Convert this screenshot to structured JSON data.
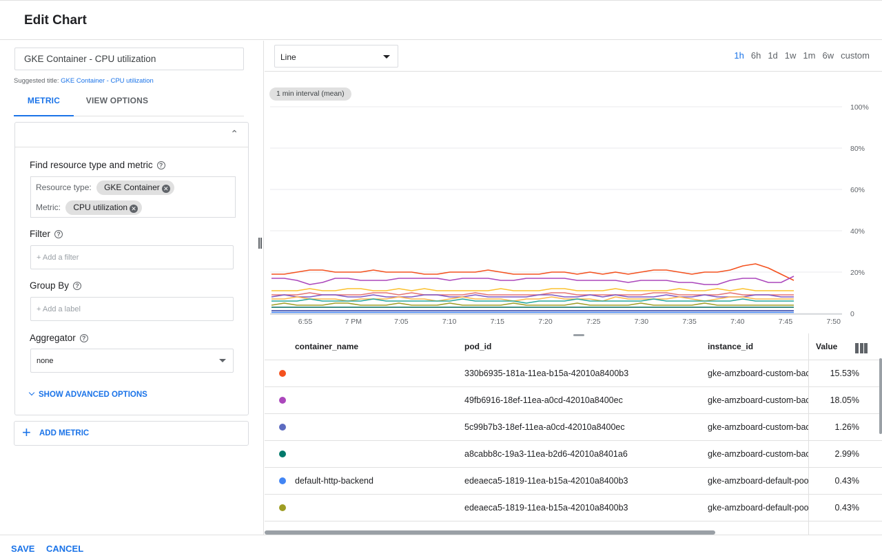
{
  "header": {
    "title": "Edit Chart"
  },
  "editor": {
    "title_value": "GKE Container - CPU utilization",
    "suggested_prefix": "Suggested title:",
    "suggested_link": "GKE Container - CPU utilization",
    "tabs": [
      {
        "label": "METRIC"
      },
      {
        "label": "VIEW OPTIONS"
      }
    ],
    "find_label": "Find resource type and metric",
    "resource_type_label": "Resource type:",
    "resource_type_value": "GKE Container",
    "metric_label": "Metric:",
    "metric_value": "CPU utilization",
    "filter_label": "Filter",
    "filter_placeholder": "+ Add a filter",
    "groupby_label": "Group By",
    "groupby_placeholder": "+ Add a label",
    "aggregator_label": "Aggregator",
    "aggregator_value": "none",
    "advanced_label": "SHOW ADVANCED OPTIONS",
    "add_metric_label": "ADD METRIC"
  },
  "toolbar": {
    "chart_type": "Line",
    "ranges": [
      "1h",
      "6h",
      "1d",
      "1w",
      "1m",
      "6w",
      "custom"
    ],
    "active_range": "1h"
  },
  "chart": {
    "interval_label": "1 min interval (mean)"
  },
  "chart_data": {
    "type": "line",
    "title": "",
    "xlabel": "",
    "ylabel": "",
    "ylim": [
      0,
      100
    ],
    "yticks": [
      "0",
      "20%",
      "40%",
      "60%",
      "80%",
      "100%"
    ],
    "xticks": [
      "6:55",
      "7 PM",
      "7:05",
      "7:10",
      "7:15",
      "7:20",
      "7:25",
      "7:30",
      "7:35",
      "7:40",
      "7:45",
      "7:50"
    ],
    "grid": true,
    "series": [
      {
        "color": "#f4511e",
        "values": [
          19,
          19,
          20,
          21,
          21,
          20,
          20,
          20,
          21,
          20,
          20,
          20,
          19,
          19,
          20,
          20,
          20,
          21,
          20,
          19,
          19,
          19,
          20,
          20,
          19,
          20,
          19,
          20,
          19,
          20,
          21,
          21,
          20,
          19,
          20,
          20,
          21,
          23,
          24,
          22,
          19,
          16
        ]
      },
      {
        "color": "#ab47bc",
        "values": [
          17,
          17,
          16,
          14,
          15,
          17,
          17,
          16,
          16,
          16,
          17,
          17,
          17,
          17,
          16,
          17,
          17,
          17,
          16,
          16,
          17,
          17,
          17,
          17,
          16,
          16,
          16,
          16,
          15,
          16,
          16,
          16,
          15,
          15,
          14,
          14,
          16,
          17,
          17,
          15,
          15,
          18
        ]
      },
      {
        "color": "#fbc02d",
        "values": [
          11,
          11,
          11,
          12,
          11,
          11,
          12,
          12,
          11,
          11,
          12,
          11,
          12,
          11,
          11,
          11,
          11,
          11,
          12,
          11,
          11,
          11,
          12,
          12,
          11,
          11,
          11,
          12,
          11,
          11,
          11,
          11,
          12,
          11,
          11,
          12,
          11,
          12,
          11,
          11,
          11,
          11
        ]
      },
      {
        "color": "#e57373",
        "values": [
          9,
          9,
          9,
          10,
          9,
          9,
          9,
          9,
          10,
          10,
          9,
          10,
          9,
          9,
          9,
          9,
          10,
          9,
          9,
          9,
          9,
          9,
          10,
          10,
          9,
          9,
          9,
          9,
          9,
          9,
          10,
          10,
          9,
          9,
          9,
          9,
          10,
          9,
          9,
          9,
          9,
          9
        ]
      },
      {
        "color": "#7e57c2",
        "values": [
          8,
          9,
          8,
          8,
          9,
          9,
          8,
          8,
          9,
          8,
          8,
          8,
          9,
          9,
          8,
          8,
          9,
          8,
          8,
          8,
          8,
          9,
          9,
          8,
          8,
          9,
          8,
          9,
          8,
          8,
          8,
          9,
          8,
          8,
          9,
          8,
          8,
          8,
          9,
          9,
          8,
          8
        ]
      },
      {
        "color": "#ffb74d",
        "values": [
          7,
          7,
          8,
          7,
          7,
          7,
          6,
          7,
          7,
          7,
          8,
          7,
          7,
          6,
          7,
          8,
          7,
          7,
          7,
          6,
          7,
          7,
          8,
          7,
          7,
          7,
          6,
          8,
          7,
          7,
          7,
          7,
          8,
          7,
          6,
          7,
          8,
          8,
          7,
          7,
          7,
          7
        ]
      },
      {
        "color": "#26a69a",
        "values": [
          6,
          6,
          6,
          7,
          6,
          6,
          6,
          6,
          7,
          6,
          6,
          6,
          6,
          6,
          6,
          7,
          6,
          6,
          6,
          6,
          5,
          6,
          6,
          6,
          7,
          6,
          6,
          6,
          6,
          6,
          7,
          6,
          6,
          6,
          6,
          6,
          6,
          7,
          6,
          6,
          6,
          6
        ]
      },
      {
        "color": "#9e9d24",
        "values": [
          4,
          5,
          4,
          4,
          4,
          5,
          5,
          4,
          4,
          4,
          5,
          4,
          4,
          4,
          5,
          4,
          4,
          4,
          4,
          5,
          4,
          4,
          4,
          4,
          5,
          4,
          4,
          4,
          4,
          5,
          4,
          4,
          4,
          4,
          5,
          4,
          4,
          4,
          4,
          4,
          4,
          4
        ]
      },
      {
        "color": "#00695c",
        "values": [
          3,
          3,
          3,
          3,
          3,
          3,
          3,
          3,
          3,
          3,
          3,
          3,
          3,
          3,
          3,
          3,
          3,
          3,
          3,
          3,
          3,
          3,
          3,
          3,
          3,
          3,
          3,
          3,
          3,
          3,
          3,
          3,
          3,
          3,
          3,
          3,
          3,
          3,
          3,
          3,
          3,
          3
        ]
      },
      {
        "color": "#3949ab",
        "values": [
          1.3,
          1.3,
          1.3,
          1.3,
          1.3,
          1.3,
          1.3,
          1.3,
          1.3,
          1.3,
          1.3,
          1.3,
          1.3,
          1.3,
          1.3,
          1.3,
          1.3,
          1.3,
          1.3,
          1.3,
          1.3,
          1.3,
          1.3,
          1.3,
          1.3,
          1.3,
          1.3,
          1.3,
          1.3,
          1.3,
          1.3,
          1.3,
          1.3,
          1.3,
          1.3,
          1.3,
          1.3,
          1.3,
          1.3,
          1.3,
          1.3,
          1.3
        ]
      },
      {
        "color": "#4285f4",
        "values": [
          0.5,
          0.5,
          0.5,
          0.5,
          0.5,
          0.5,
          0.5,
          0.5,
          0.5,
          0.5,
          0.5,
          0.5,
          0.5,
          0.5,
          0.5,
          0.5,
          0.5,
          0.5,
          0.5,
          0.5,
          0.5,
          0.5,
          0.5,
          0.5,
          0.5,
          0.5,
          0.5,
          0.5,
          0.5,
          0.5,
          0.5,
          0.5,
          0.5,
          0.5,
          0.5,
          0.5,
          0.5,
          0.5,
          0.5,
          0.5,
          0.5,
          0.5
        ]
      }
    ]
  },
  "table": {
    "columns": [
      "container_name",
      "pod_id",
      "instance_id",
      "Value"
    ],
    "rows": [
      {
        "color": "#f4511e",
        "container_name": "",
        "pod_id": "330b6935-181a-11ea-b15a-42010a8400b3",
        "instance_id": "gke-amzboard-custom-backend",
        "value": "15.53%"
      },
      {
        "color": "#ab47bc",
        "container_name": "",
        "pod_id": "49fb6916-18ef-11ea-a0cd-42010a8400ec",
        "instance_id": "gke-amzboard-custom-backend",
        "value": "18.05%"
      },
      {
        "color": "#5c6bc0",
        "container_name": "",
        "pod_id": "5c99b7b3-18ef-11ea-a0cd-42010a8400ec",
        "instance_id": "gke-amzboard-custom-backend",
        "value": "1.26%"
      },
      {
        "color": "#00796b",
        "container_name": "",
        "pod_id": "a8cabb8c-19a3-11ea-b2d6-42010a8401a6",
        "instance_id": "gke-amzboard-custom-backend",
        "value": "2.99%"
      },
      {
        "color": "#4285f4",
        "container_name": "default-http-backend",
        "pod_id": "edeaeca5-1819-11ea-b15a-42010a8400b3",
        "instance_id": "gke-amzboard-default-pool",
        "value": "0.43%"
      },
      {
        "color": "#9e9d24",
        "container_name": "",
        "pod_id": "edeaeca5-1819-11ea-b15a-42010a8400b3",
        "instance_id": "gke-amzboard-default-pool",
        "value": "0.43%"
      }
    ]
  },
  "footer": {
    "save_label": "SAVE",
    "cancel_label": "CANCEL"
  }
}
